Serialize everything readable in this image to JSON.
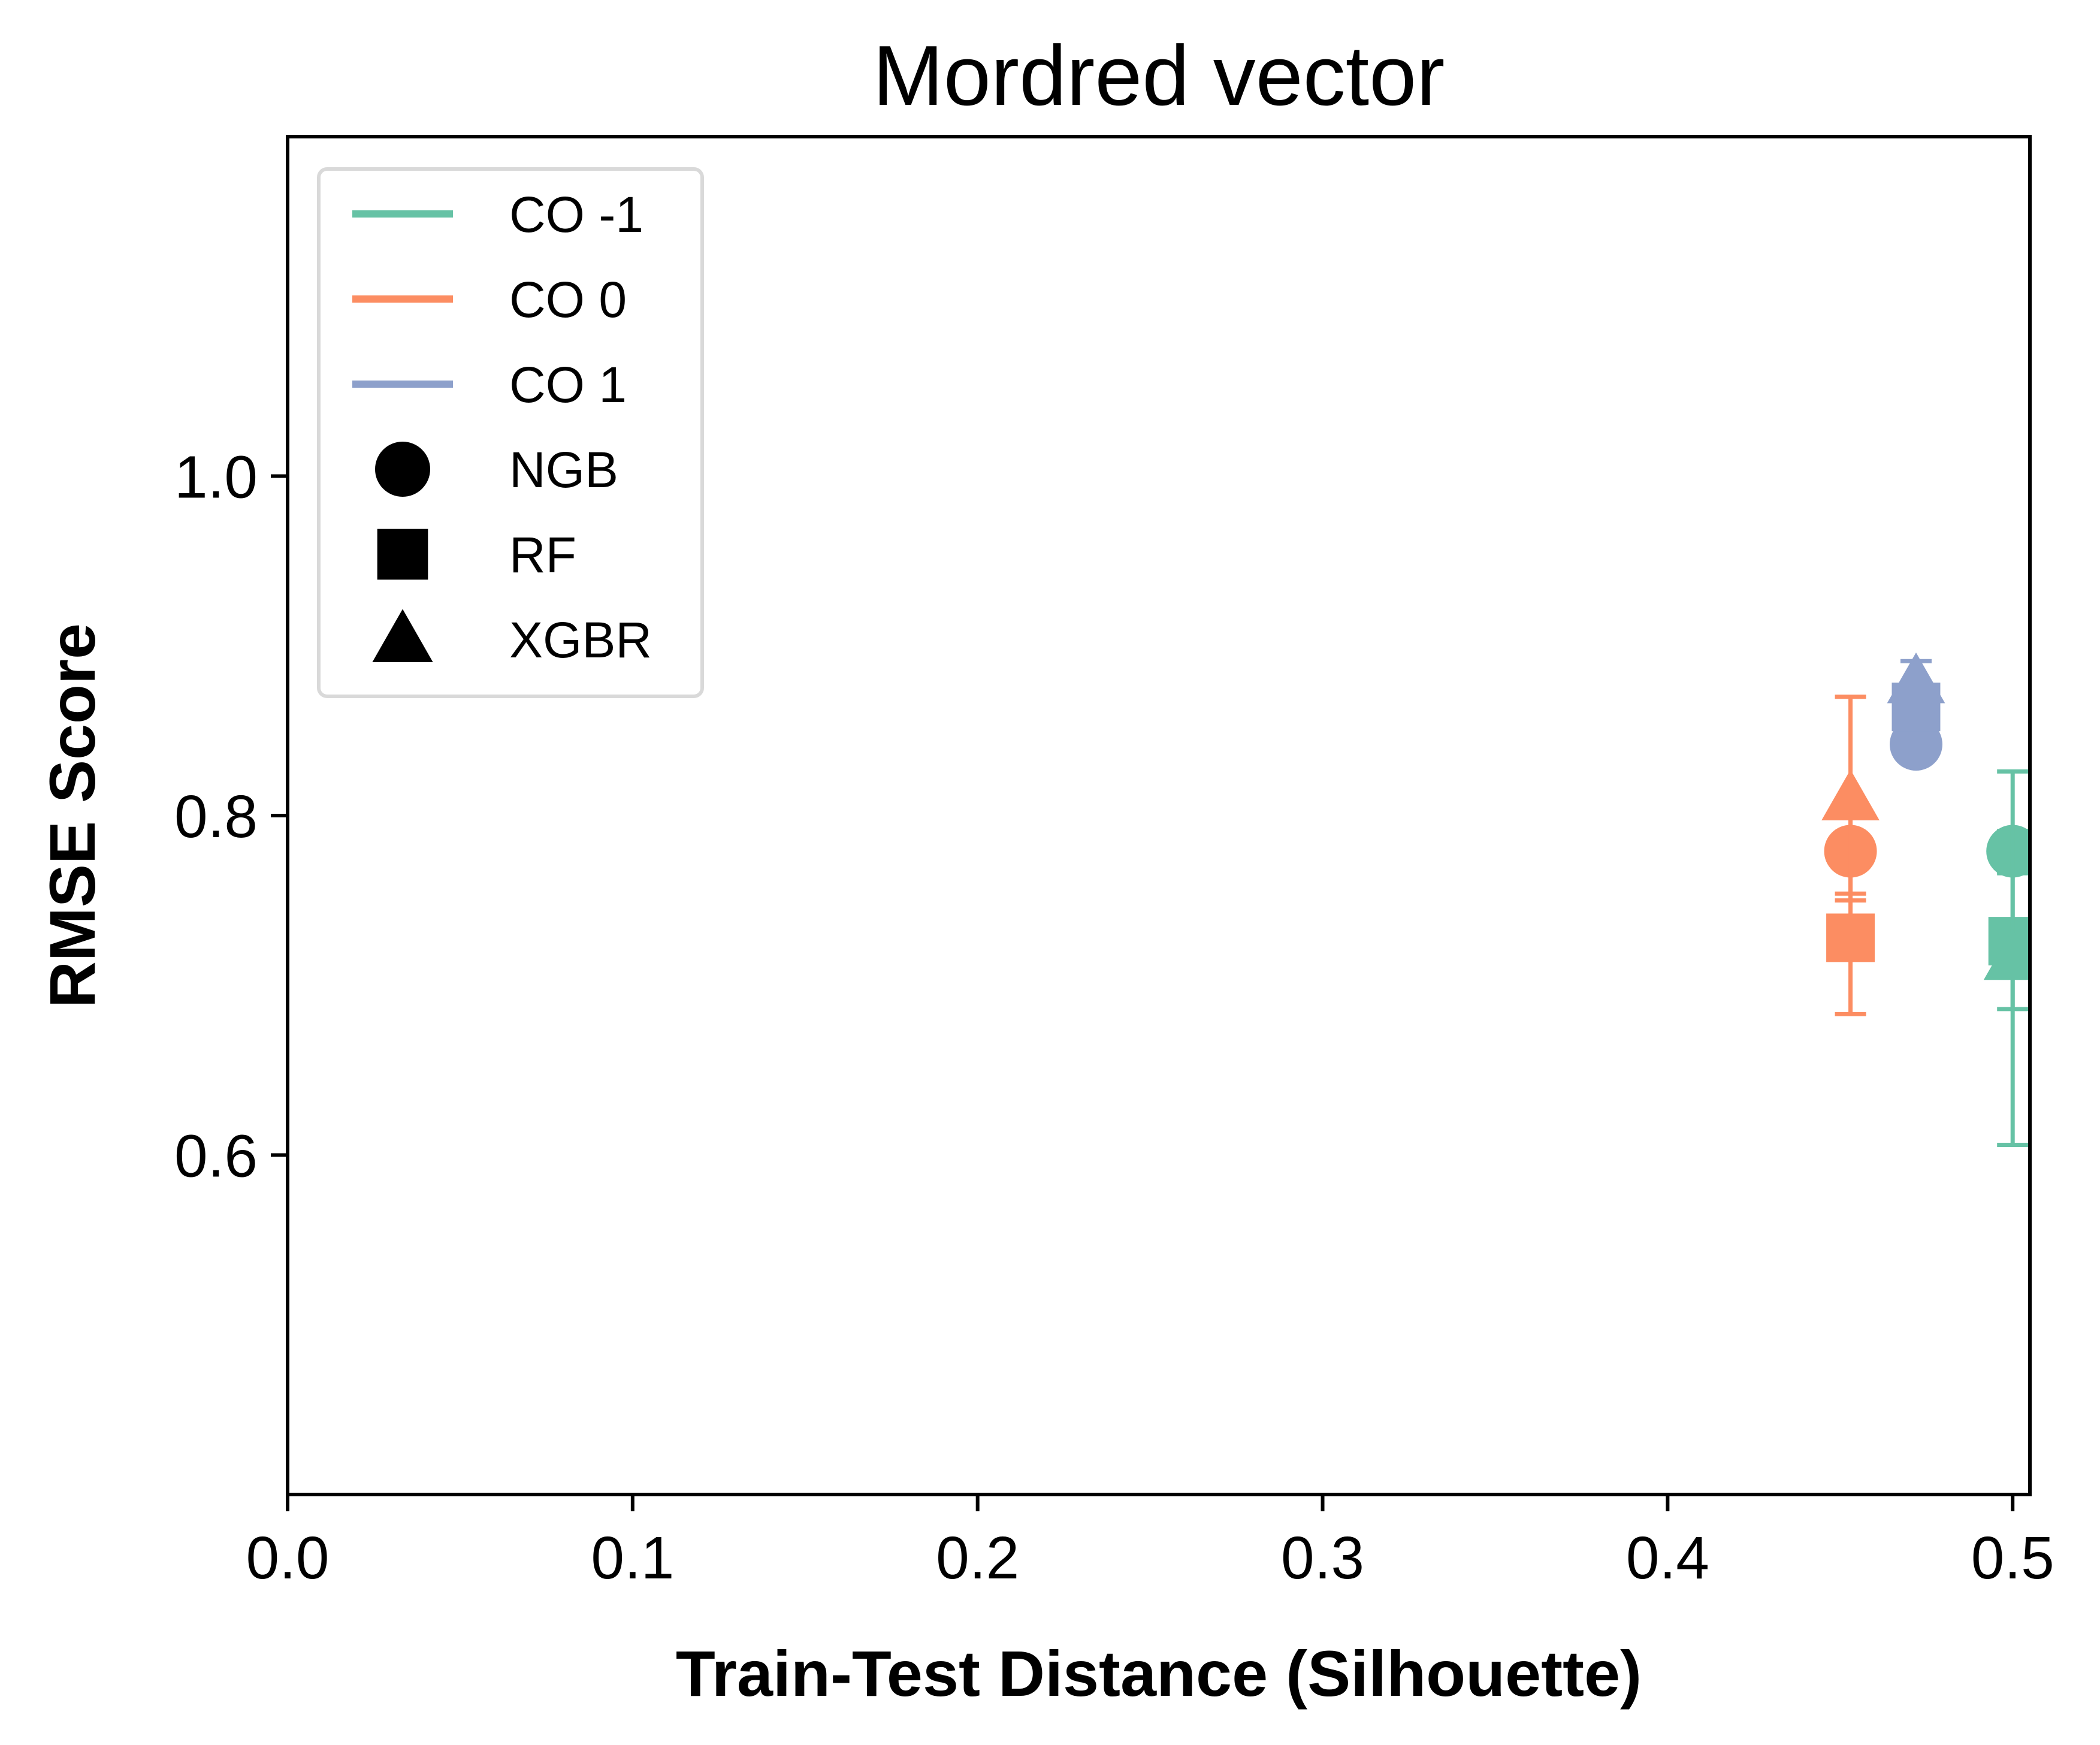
{
  "chart_data": {
    "type": "scatter",
    "title": "Mordred vector",
    "xlabel": "Train-Test Distance (Silhouette)",
    "ylabel": "RMSE Score",
    "xlim": [
      0.0,
      0.505
    ],
    "ylim": [
      0.4,
      1.2
    ],
    "xticks": [
      0.0,
      0.1,
      0.2,
      0.3,
      0.4,
      0.5
    ],
    "xtick_labels": [
      "0.0",
      "0.1",
      "0.2",
      "0.3",
      "0.4",
      "0.5"
    ],
    "yticks": [
      0.6,
      0.8,
      1.0
    ],
    "ytick_labels": [
      "0.6",
      "0.8",
      "1.0"
    ],
    "grid": false,
    "legend_position": "top-left",
    "legend": {
      "groups": [
        {
          "key": "co_m1",
          "label": "CO -1",
          "color": "#66c2a5"
        },
        {
          "key": "co_0",
          "label": "CO 0",
          "color": "#fc8d62"
        },
        {
          "key": "co_1",
          "label": "CO 1",
          "color": "#8da0cb"
        }
      ],
      "models": [
        {
          "key": "ngb",
          "label": "NGB",
          "marker": "circle"
        },
        {
          "key": "rf",
          "label": "RF",
          "marker": "square"
        },
        {
          "key": "xgbr",
          "label": "XGBR",
          "marker": "triangle"
        }
      ]
    },
    "series": [
      {
        "group": "co_m1",
        "model": "ngb",
        "x": 0.5,
        "y": 0.779,
        "err": 0.012
      },
      {
        "group": "co_m1",
        "model": "rf",
        "x": 0.5,
        "y": 0.726,
        "err": 0.04
      },
      {
        "group": "co_m1",
        "model": "xgbr",
        "x": 0.5,
        "y": 0.716,
        "err": 0.11
      },
      {
        "group": "co_0",
        "model": "ngb",
        "x": 0.453,
        "y": 0.779,
        "err": 0.025
      },
      {
        "group": "co_0",
        "model": "rf",
        "x": 0.453,
        "y": 0.728,
        "err": 0.045
      },
      {
        "group": "co_0",
        "model": "xgbr",
        "x": 0.453,
        "y": 0.81,
        "err": 0.06
      },
      {
        "group": "co_1",
        "model": "ngb",
        "x": 0.472,
        "y": 0.842,
        "err": 0.004
      },
      {
        "group": "co_1",
        "model": "rf",
        "x": 0.472,
        "y": 0.864,
        "err": 0.01
      },
      {
        "group": "co_1",
        "model": "xgbr",
        "x": 0.472,
        "y": 0.879,
        "err": 0.012
      }
    ]
  }
}
